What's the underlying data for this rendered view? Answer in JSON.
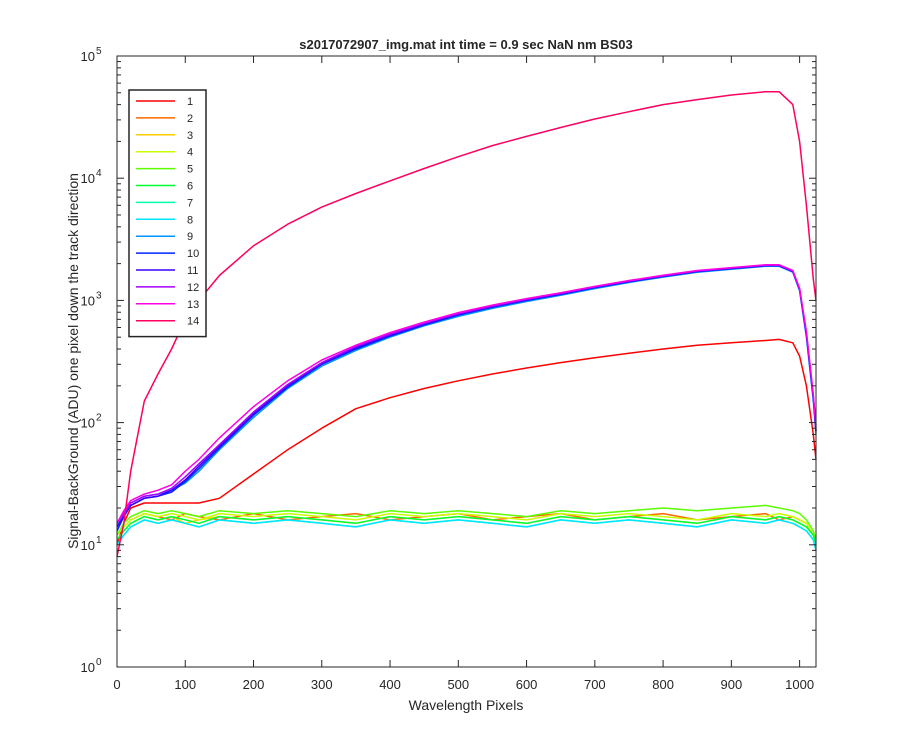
{
  "chart_data": {
    "type": "line",
    "title": "s2017072907_img.mat int time = 0.9 sec  NaN nm BS03",
    "xlabel": "Wavelength Pixels",
    "ylabel": "Signal-BackGround (ADU) one pixel down the track direction",
    "xlim": [
      0,
      1024
    ],
    "ylim": [
      1,
      100000
    ],
    "yscale": "log",
    "grid": false,
    "legend_position": "top-left",
    "x_ticks": [
      0,
      100,
      200,
      300,
      400,
      500,
      600,
      700,
      800,
      900,
      1000
    ],
    "x_tick_labels": [
      "0",
      "100",
      "200",
      "300",
      "400",
      "500",
      "600",
      "700",
      "800",
      "900",
      "1000"
    ],
    "y_ticks": [
      1,
      10,
      100,
      1000,
      10000,
      100000
    ],
    "y_tick_labels": [
      {
        "base": "10",
        "exp": "0"
      },
      {
        "base": "10",
        "exp": "1"
      },
      {
        "base": "10",
        "exp": "2"
      },
      {
        "base": "10",
        "exp": "3"
      },
      {
        "base": "10",
        "exp": "4"
      },
      {
        "base": "10",
        "exp": "5"
      }
    ],
    "x": [
      0,
      10,
      20,
      40,
      60,
      80,
      100,
      120,
      150,
      200,
      250,
      300,
      350,
      400,
      450,
      500,
      550,
      600,
      650,
      700,
      750,
      800,
      850,
      900,
      950,
      970,
      990,
      1000,
      1010,
      1020,
      1024
    ],
    "series": [
      {
        "name": "1",
        "color": "#ff0000",
        "values": [
          10,
          15,
          20,
          22,
          22,
          22,
          22,
          22,
          24,
          38,
          60,
          90,
          130,
          160,
          190,
          220,
          250,
          280,
          310,
          340,
          370,
          400,
          430,
          450,
          470,
          480,
          450,
          350,
          200,
          80,
          50
        ]
      },
      {
        "name": "2",
        "color": "#ff6a00",
        "values": [
          12,
          14,
          16,
          18,
          17,
          16,
          18,
          17,
          16,
          18,
          16,
          17,
          18,
          16,
          17,
          18,
          16,
          17,
          18,
          16,
          17,
          18,
          16,
          17,
          18,
          16,
          17,
          16,
          15,
          12,
          10
        ]
      },
      {
        "name": "3",
        "color": "#ffcc00",
        "values": [
          11,
          13,
          15,
          17,
          16,
          17,
          15,
          16,
          17,
          16,
          17,
          16,
          15,
          17,
          16,
          17,
          16,
          15,
          17,
          16,
          17,
          16,
          15,
          17,
          16,
          17,
          16,
          15,
          14,
          12,
          10
        ]
      },
      {
        "name": "4",
        "color": "#c8ff00",
        "values": [
          12,
          14,
          16,
          18,
          17,
          18,
          17,
          16,
          18,
          17,
          18,
          17,
          16,
          18,
          17,
          18,
          17,
          16,
          18,
          17,
          18,
          17,
          16,
          18,
          17,
          18,
          17,
          16,
          15,
          12,
          10
        ]
      },
      {
        "name": "5",
        "color": "#5cff00",
        "values": [
          12,
          15,
          17,
          19,
          18,
          19,
          18,
          17,
          19,
          18,
          19,
          18,
          17,
          19,
          18,
          19,
          18,
          17,
          19,
          18,
          19,
          20,
          19,
          20,
          21,
          20,
          19,
          18,
          16,
          13,
          11
        ]
      },
      {
        "name": "6",
        "color": "#00ff30",
        "values": [
          11,
          13,
          15,
          17,
          16,
          17,
          16,
          15,
          17,
          16,
          17,
          16,
          15,
          17,
          16,
          17,
          16,
          15,
          17,
          16,
          17,
          16,
          15,
          17,
          16,
          17,
          16,
          15,
          14,
          12,
          10
        ]
      },
      {
        "name": "7",
        "color": "#00ffaa",
        "values": [
          10,
          12,
          14,
          16,
          15,
          16,
          15,
          14,
          16,
          15,
          16,
          15,
          14,
          16,
          15,
          16,
          15,
          14,
          16,
          15,
          16,
          15,
          14,
          16,
          15,
          16,
          15,
          14,
          13,
          11,
          9
        ]
      },
      {
        "name": "8",
        "color": "#00e5ff",
        "values": [
          10,
          12,
          14,
          16,
          15,
          16,
          15,
          14,
          16,
          15,
          16,
          15,
          14,
          16,
          15,
          16,
          15,
          14,
          16,
          15,
          16,
          15,
          14,
          16,
          15,
          16,
          15,
          14,
          13,
          11,
          9
        ]
      },
      {
        "name": "9",
        "color": "#0094ff",
        "values": [
          14,
          18,
          22,
          25,
          26,
          28,
          32,
          40,
          60,
          110,
          190,
          290,
          390,
          500,
          620,
          740,
          860,
          980,
          1100,
          1250,
          1400,
          1550,
          1700,
          1800,
          1900,
          1900,
          1700,
          1200,
          500,
          150,
          80
        ]
      },
      {
        "name": "10",
        "color": "#0026ff",
        "values": [
          13,
          17,
          21,
          24,
          25,
          27,
          33,
          42,
          62,
          115,
          195,
          300,
          400,
          510,
          630,
          760,
          880,
          1000,
          1120,
          1270,
          1420,
          1570,
          1720,
          1820,
          1920,
          1920,
          1720,
          1220,
          520,
          160,
          85
        ]
      },
      {
        "name": "11",
        "color": "#3a00ff",
        "values": [
          14,
          17,
          21,
          24,
          25,
          28,
          34,
          44,
          64,
          118,
          200,
          305,
          410,
          520,
          640,
          770,
          890,
          1010,
          1130,
          1280,
          1430,
          1580,
          1730,
          1830,
          1930,
          1930,
          1730,
          1230,
          530,
          160,
          85
        ]
      },
      {
        "name": "12",
        "color": "#a600ff",
        "values": [
          15,
          18,
          22,
          25,
          26,
          29,
          36,
          46,
          66,
          122,
          205,
          310,
          420,
          530,
          650,
          780,
          900,
          1020,
          1140,
          1290,
          1440,
          1590,
          1740,
          1840,
          1940,
          1940,
          1740,
          1240,
          540,
          165,
          90
        ]
      },
      {
        "name": "13",
        "color": "#ff00e5",
        "values": [
          15,
          19,
          23,
          26,
          28,
          31,
          40,
          50,
          75,
          135,
          220,
          325,
          430,
          545,
          665,
          795,
          915,
          1035,
          1155,
          1305,
          1455,
          1605,
          1755,
          1855,
          1955,
          1955,
          1755,
          1255,
          560,
          170,
          95
        ]
      },
      {
        "name": "14",
        "color": "#ff0060",
        "values": [
          8,
          15,
          40,
          150,
          250,
          400,
          700,
          1000,
          1600,
          2800,
          4200,
          5800,
          7500,
          9500,
          12000,
          15000,
          18500,
          22000,
          26000,
          30500,
          35000,
          40000,
          44000,
          48000,
          51000,
          51000,
          40000,
          20000,
          6000,
          1500,
          1000
        ]
      }
    ]
  }
}
